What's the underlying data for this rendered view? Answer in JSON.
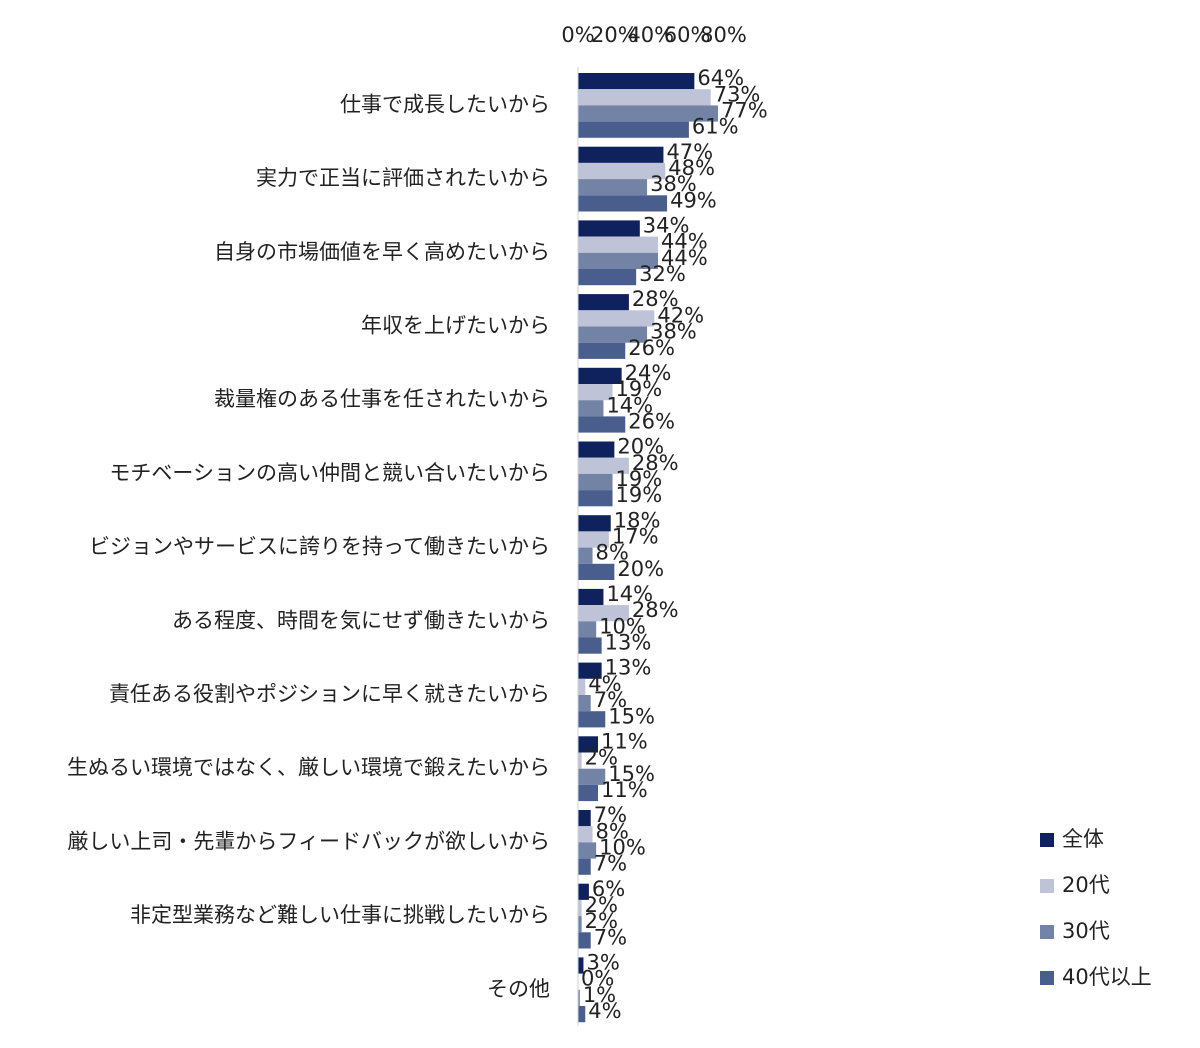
{
  "chart_data": {
    "type": "bar",
    "orientation": "horizontal",
    "categories": [
      "仕事で成長したいから",
      "実力で正当に評価されたいから",
      "自身の市場価値を早く高めたいから",
      "年収を上げたいから",
      "裁量権のある仕事を任されたいから",
      "モチベーションの高い仲間と競い合いたいから",
      "ビジョンやサービスに誇りを持って働きたいから",
      "ある程度、時間を気にせず働きたいから",
      "責任ある役割やポジションに早く就きたいから",
      "生ぬるい環境ではなく、厳しい環境で鍛えたいから",
      "厳しい上司・先輩からフィードバックが欲しいから",
      "非定型業務など難しい仕事に挑戦したいから",
      "その他"
    ],
    "series": [
      {
        "name": "全体",
        "color": "#0f225e",
        "values": [
          64,
          47,
          34,
          28,
          24,
          20,
          18,
          14,
          13,
          11,
          7,
          6,
          3
        ]
      },
      {
        "name": "20代",
        "color": "#bfc3d8",
        "values": [
          73,
          48,
          44,
          42,
          19,
          28,
          17,
          28,
          4,
          2,
          8,
          2,
          0
        ]
      },
      {
        "name": "30代",
        "color": "#7383a6",
        "values": [
          77,
          38,
          44,
          38,
          14,
          19,
          8,
          10,
          7,
          15,
          10,
          2,
          1
        ]
      },
      {
        "name": "40代以上",
        "color": "#4a5e8e",
        "values": [
          61,
          49,
          32,
          26,
          26,
          19,
          20,
          13,
          15,
          11,
          7,
          7,
          4
        ]
      }
    ],
    "xticks": [
      "0%",
      "20%",
      "40%",
      "60%",
      "80%"
    ],
    "xlim": [
      0,
      80
    ],
    "value_suffix": "%",
    "xaxis_position": "top",
    "legend_position": "bottom-right",
    "grid": false
  }
}
